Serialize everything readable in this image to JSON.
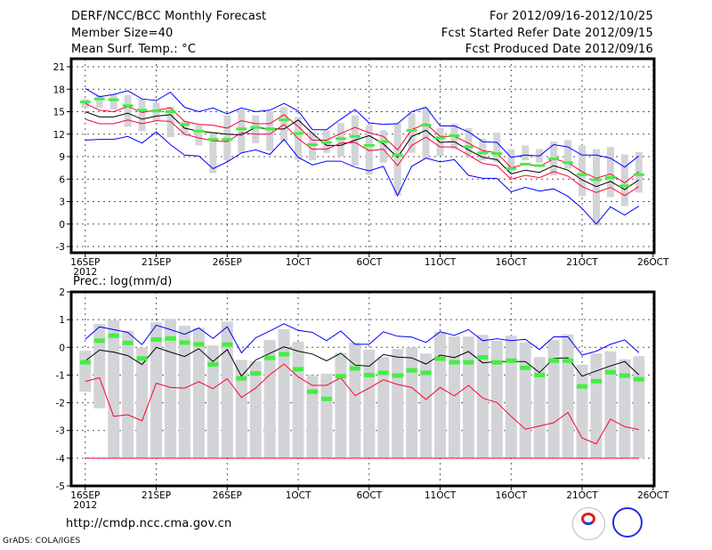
{
  "header": {
    "title": "DERF/NCC/BCC Monthly Forecast",
    "member_size": "Member Size=40",
    "variable": "Mean Surf. Temp.: °C",
    "period": "For 2012/09/16-2012/10/25",
    "started": "Fcst Started Refer Date 2012/09/15",
    "produced": "Fcst Produced Date 2012/09/16"
  },
  "footer": {
    "url": "http://cmdp.ncc.cma.gov.cn",
    "credit": "GrADS: COLA/IGES",
    "logo_bcc": "BCC",
    "logo_ncc": "NCC"
  },
  "colors": {
    "upper_lower": "#0000ff",
    "spread": "#ff0033",
    "mean": "#000000",
    "observed": "#44ee44",
    "box": "#d3d4d8"
  },
  "chart_data": [
    {
      "type": "line",
      "title": "Mean Surf. Temp.: °C",
      "ylim": [
        -3,
        21
      ],
      "yticks": [
        "21",
        "18",
        "15",
        "12",
        "9",
        "6",
        "3",
        "0",
        "-3"
      ],
      "ytick_values": [
        21,
        18,
        15,
        12,
        9,
        6,
        3,
        0,
        -3
      ],
      "xtick_labels": [
        "16SEP",
        "21SEP",
        "26SEP",
        "1OCT",
        "6OCT",
        "11OCT",
        "16OCT",
        "21OCT",
        "26OCT"
      ],
      "xtick_days": [
        0,
        5,
        10,
        15,
        20,
        25,
        30,
        35,
        40
      ],
      "year_label": "2012",
      "x_days": 40,
      "series": [
        {
          "name": "max",
          "color": "#0000ff",
          "values": [
            18.1,
            17.0,
            17.3,
            17.8,
            16.7,
            16.5,
            17.6,
            15.6,
            15.0,
            15.5,
            14.7,
            15.5,
            15.0,
            15.2,
            16.1,
            15.1,
            12.6,
            12.6,
            14.0,
            15.3,
            13.5,
            13.3,
            13.4,
            15.0,
            15.6,
            13.1,
            13.1,
            12.3,
            11.0,
            10.9,
            8.9,
            9.2,
            9.1,
            10.6,
            10.3,
            9.2,
            9.2,
            8.8,
            7.6,
            9.1
          ]
        },
        {
          "name": "upper",
          "color": "#ff0033",
          "values": [
            16.1,
            15.2,
            15.0,
            15.7,
            14.9,
            15.2,
            15.5,
            13.7,
            13.3,
            13.2,
            12.8,
            13.8,
            13.4,
            13.4,
            14.6,
            13.0,
            11.2,
            11.2,
            12.1,
            12.9,
            12.2,
            11.7,
            9.9,
            12.6,
            13.4,
            11.7,
            11.7,
            10.8,
            9.8,
            9.5,
            7.5,
            8.0,
            7.7,
            8.7,
            8.2,
            7.0,
            6.1,
            6.7,
            5.5,
            7.0
          ]
        },
        {
          "name": "mean",
          "color": "#000000",
          "values": [
            15.0,
            14.3,
            14.3,
            14.8,
            14.0,
            14.4,
            14.6,
            12.8,
            12.4,
            12.2,
            12.0,
            11.9,
            12.9,
            12.7,
            12.7,
            13.9,
            12.1,
            10.5,
            10.5,
            11.2,
            11.8,
            10.7,
            8.9,
            11.7,
            12.5,
            10.9,
            11.0,
            9.9,
            8.9,
            8.6,
            6.7,
            7.2,
            6.9,
            7.8,
            7.2,
            5.9,
            5.0,
            5.7,
            4.6,
            5.9
          ]
        },
        {
          "name": "lower",
          "color": "#ff0033",
          "values": [
            14.0,
            13.4,
            13.4,
            13.9,
            13.4,
            13.8,
            13.7,
            12.0,
            11.5,
            11.1,
            11.0,
            12.2,
            12.0,
            12.0,
            13.3,
            11.4,
            10.0,
            10.0,
            10.8,
            10.9,
            9.8,
            10.0,
            7.8,
            10.5,
            11.6,
            10.3,
            10.3,
            9.2,
            8.1,
            7.8,
            6.0,
            6.5,
            6.2,
            7.0,
            6.4,
            5.0,
            4.2,
            4.9,
            3.8,
            5.0
          ]
        },
        {
          "name": "min",
          "color": "#0000ff",
          "values": [
            11.2,
            11.3,
            11.3,
            11.7,
            10.8,
            12.3,
            10.6,
            9.2,
            9.1,
            7.4,
            8.3,
            9.5,
            9.9,
            9.3,
            11.3,
            8.9,
            7.9,
            8.4,
            8.4,
            7.6,
            7.1,
            7.7,
            3.8,
            7.7,
            8.8,
            8.3,
            8.6,
            6.5,
            6.1,
            6.1,
            4.3,
            4.9,
            4.4,
            4.7,
            3.7,
            2.1,
            0.0,
            2.3,
            1.2,
            2.4
          ]
        },
        {
          "name": "observed",
          "color": "#44ee44",
          "values": [
            16.3,
            16.7,
            16.6,
            15.8,
            15.2,
            15.1,
            15.0,
            13.3,
            12.4,
            11.3,
            11.3,
            12.7,
            12.9,
            12.7,
            13.9,
            12.1,
            10.6,
            10.9,
            11.4,
            11.7,
            10.5,
            11.0,
            9.2,
            12.5,
            13.2,
            11.5,
            11.8,
            10.3,
            9.5,
            9.4,
            7.4,
            8.0,
            7.8,
            8.7,
            8.2,
            6.6,
            5.9,
            6.2,
            5.1,
            6.6
          ]
        }
      ],
      "boxes": [
        [
          15.5,
          16.7
        ],
        [
          15.5,
          17.2
        ],
        [
          15.3,
          17.3
        ],
        [
          13.0,
          17.2
        ],
        [
          12.4,
          16.7
        ],
        [
          13.8,
          16.2
        ],
        [
          11.6,
          15.7
        ],
        [
          11.8,
          13.8
        ],
        [
          10.5,
          13.2
        ],
        [
          6.8,
          12.3
        ],
        [
          8.5,
          14.5
        ],
        [
          9.5,
          15.3
        ],
        [
          10.8,
          14.5
        ],
        [
          9.8,
          15.1
        ],
        [
          11.0,
          15.6
        ],
        [
          8.6,
          14.3
        ],
        [
          8.5,
          12.3
        ],
        [
          9.5,
          12.5
        ],
        [
          9.0,
          13.5
        ],
        [
          7.8,
          14.5
        ],
        [
          6.6,
          13.2
        ],
        [
          8.2,
          12.5
        ],
        [
          3.8,
          13.5
        ],
        [
          9.5,
          14.8
        ],
        [
          8.7,
          15.5
        ],
        [
          9.1,
          12.8
        ],
        [
          10.0,
          13.4
        ],
        [
          9.2,
          12.8
        ],
        [
          8.5,
          11.4
        ],
        [
          8.3,
          12.2
        ],
        [
          7.0,
          10.0
        ],
        [
          8.5,
          10.5
        ],
        [
          8.2,
          10.0
        ],
        [
          6.5,
          11.0
        ],
        [
          7.4,
          11.2
        ],
        [
          3.7,
          10.5
        ],
        [
          -0.2,
          10.0
        ],
        [
          3.6,
          10.3
        ],
        [
          2.4,
          9.3
        ],
        [
          4.2,
          9.6
        ]
      ]
    },
    {
      "type": "line",
      "title": "Prec.: log(mm/d)",
      "ylim": [
        -5,
        2
      ],
      "yticks": [
        "2",
        "1",
        "0",
        "-1",
        "-2",
        "-3",
        "-4",
        "-5"
      ],
      "ytick_values": [
        2,
        1,
        0,
        -1,
        -2,
        -3,
        -4,
        -5
      ],
      "xtick_labels": [
        "16SEP",
        "21SEP",
        "26SEP",
        "1OCT",
        "6OCT",
        "11OCT",
        "16OCT",
        "21OCT",
        "26OCT"
      ],
      "xtick_days": [
        0,
        5,
        10,
        15,
        20,
        25,
        30,
        35,
        40
      ],
      "year_label": "2012",
      "x_days": 40,
      "series": [
        {
          "name": "max",
          "color": "#0000ff",
          "values": [
            0.29,
            0.74,
            0.64,
            0.54,
            0.1,
            0.8,
            0.64,
            0.47,
            0.7,
            0.32,
            0.74,
            -0.2,
            0.34,
            0.59,
            0.85,
            0.61,
            0.54,
            0.24,
            0.59,
            0.11,
            0.11,
            0.56,
            0.4,
            0.37,
            0.18,
            0.56,
            0.43,
            0.64,
            0.24,
            0.31,
            0.24,
            0.29,
            -0.08,
            0.38,
            0.38,
            -0.28,
            -0.14,
            0.11,
            0.27,
            -0.19
          ]
        },
        {
          "name": "mean",
          "color": "#000000",
          "values": [
            -0.49,
            -0.1,
            -0.17,
            -0.3,
            -0.62,
            0.0,
            -0.17,
            -0.33,
            -0.05,
            -0.51,
            -0.08,
            -1.04,
            -0.46,
            -0.22,
            0.02,
            -0.14,
            -0.24,
            -0.49,
            -0.21,
            -0.64,
            -0.68,
            -0.26,
            -0.35,
            -0.38,
            -0.6,
            -0.28,
            -0.37,
            -0.15,
            -0.56,
            -0.51,
            -0.51,
            -0.51,
            -0.91,
            -0.4,
            -0.38,
            -1.04,
            -0.85,
            -0.67,
            -0.51,
            -0.99
          ]
        },
        {
          "name": "lower",
          "color": "#ff0033",
          "values": [
            -1.23,
            -1.1,
            -2.49,
            -2.43,
            -2.65,
            -1.29,
            -1.45,
            -1.47,
            -1.24,
            -1.49,
            -1.13,
            -1.81,
            -1.47,
            -0.99,
            -0.6,
            -1.07,
            -1.37,
            -1.37,
            -1.1,
            -1.74,
            -1.47,
            -1.17,
            -1.34,
            -1.45,
            -1.88,
            -1.45,
            -1.75,
            -1.37,
            -1.83,
            -1.99,
            -2.49,
            -2.95,
            -2.84,
            -2.72,
            -2.35,
            -3.27,
            -3.48,
            -2.59,
            -2.86,
            -2.97
          ]
        },
        {
          "name": "min",
          "color": "#ff0033",
          "values": [
            -4,
            -4,
            -4,
            -4,
            -4,
            -4,
            -4,
            -4,
            -4,
            -4,
            -4,
            -4,
            -4,
            -4,
            -4,
            -4,
            -4,
            -4,
            -4,
            -4,
            -4,
            -4,
            -4,
            -4,
            -4,
            -4,
            -4,
            -4,
            -4,
            -4,
            -4,
            -4,
            -4,
            -4,
            -4,
            -4,
            -4,
            -4,
            -4,
            -4
          ]
        },
        {
          "name": "observed",
          "color": "#44ee44",
          "values": [
            -0.54,
            0.24,
            0.42,
            0.16,
            -0.4,
            0.28,
            0.32,
            0.17,
            0.11,
            -0.62,
            0.1,
            -1.12,
            -0.94,
            -0.38,
            -0.25,
            -0.79,
            -1.6,
            -1.86,
            -1.04,
            -0.76,
            -1.0,
            -0.92,
            -1.02,
            -0.83,
            -0.92,
            -0.41,
            -0.54,
            -0.54,
            -0.36,
            -0.54,
            -0.48,
            -0.74,
            -1.0,
            -0.48,
            -0.48,
            -1.41,
            -1.22,
            -0.9,
            -1.02,
            -1.15
          ]
        }
      ],
      "boxes": [
        [
          -1.6,
          -0.12
        ],
        [
          -2.2,
          0.85
        ],
        [
          -4,
          0.98
        ],
        [
          -4,
          0.6
        ],
        [
          -4,
          0.0
        ],
        [
          -4,
          0.9
        ],
        [
          -4,
          1.03
        ],
        [
          -4,
          0.78
        ],
        [
          -4,
          0.7
        ],
        [
          -4,
          0.07
        ],
        [
          -4,
          0.93
        ],
        [
          -4,
          -0.45
        ],
        [
          -4,
          -0.5
        ],
        [
          -4,
          0.27
        ],
        [
          -4,
          0.65
        ],
        [
          -4,
          0.2
        ],
        [
          -4,
          -1.0
        ],
        [
          -4,
          -0.95
        ],
        [
          -4,
          -0.2
        ],
        [
          -4,
          0.18
        ],
        [
          -4,
          -0.08
        ],
        [
          -4,
          -0.35
        ],
        [
          -4,
          -0.06
        ],
        [
          -4,
          0.0
        ],
        [
          -4,
          -0.22
        ],
        [
          -4,
          0.56
        ],
        [
          -4,
          0.39
        ],
        [
          -4,
          0.39
        ],
        [
          -4,
          0.45
        ],
        [
          -4,
          0.24
        ],
        [
          -4,
          0.42
        ],
        [
          -4,
          0.18
        ],
        [
          -4,
          -0.35
        ],
        [
          -4,
          0.26
        ],
        [
          -4,
          0.47
        ],
        [
          -4,
          -0.62
        ],
        [
          -4,
          -0.22
        ],
        [
          -4,
          -0.14
        ],
        [
          -4,
          -0.43
        ],
        [
          -4,
          -0.32
        ]
      ]
    }
  ]
}
